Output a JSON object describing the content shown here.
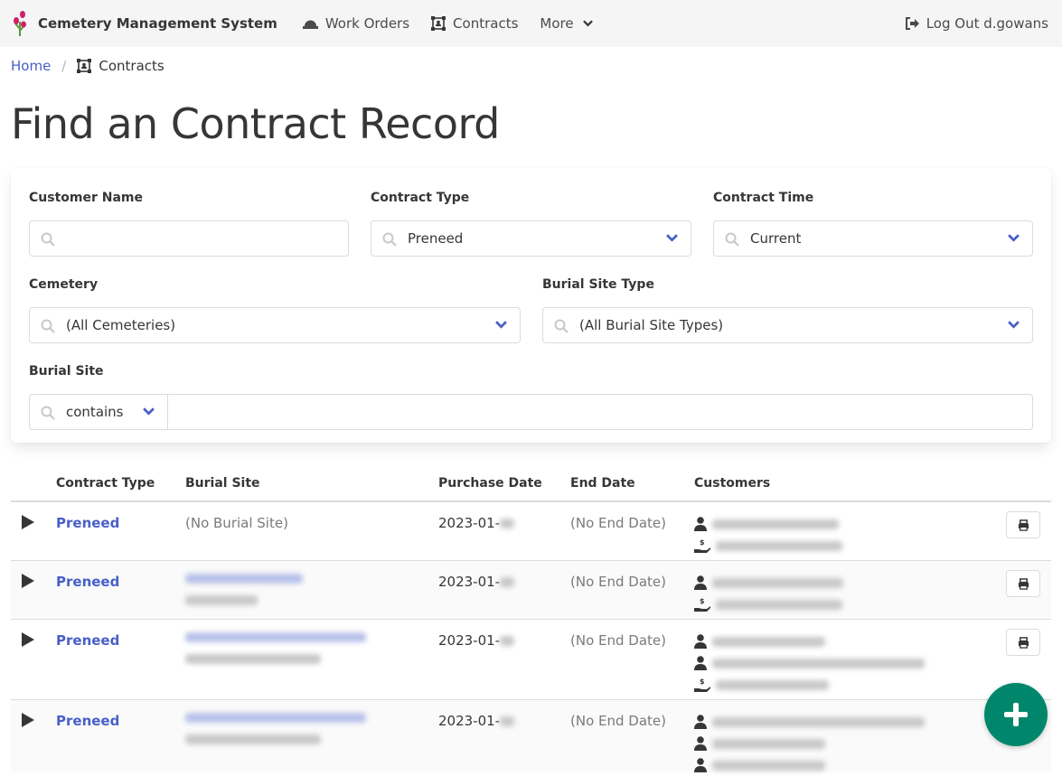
{
  "app": {
    "title": "Cemetery Management System"
  },
  "nav": {
    "items": [
      {
        "label": "Work Orders",
        "icon": "hard-hat-icon"
      },
      {
        "label": "Contracts",
        "icon": "contract-icon"
      },
      {
        "label": "More",
        "icon": "chevron-down-icon"
      }
    ],
    "logout": "Log Out d.gowans"
  },
  "breadcrumb": {
    "home": "Home",
    "current": "Contracts"
  },
  "page": {
    "title": "Find an Contract Record"
  },
  "filters": {
    "customer_name": {
      "label": "Customer Name",
      "value": ""
    },
    "contract_type": {
      "label": "Contract Type",
      "value": "Preneed"
    },
    "contract_time": {
      "label": "Contract Time",
      "value": "Current"
    },
    "cemetery": {
      "label": "Cemetery",
      "value": "(All Cemeteries)"
    },
    "burial_site_type": {
      "label": "Burial Site Type",
      "value": "(All Burial Site Types)"
    },
    "burial_site": {
      "label": "Burial Site",
      "operator": "contains",
      "value": ""
    }
  },
  "table": {
    "headers": {
      "contract_type": "Contract Type",
      "burial_site": "Burial Site",
      "purchase_date": "Purchase Date",
      "end_date": "End Date",
      "customers": "Customers"
    },
    "rows": [
      {
        "contract_type": "Preneed",
        "burial_site": "(No Burial Site)",
        "purchase_date": "2023-01-",
        "end_date": "(No End Date)"
      },
      {
        "contract_type": "Preneed",
        "burial_site": "",
        "purchase_date": "2023-01-",
        "end_date": "(No End Date)"
      },
      {
        "contract_type": "Preneed",
        "burial_site": "",
        "purchase_date": "2023-01-",
        "end_date": "(No End Date)"
      },
      {
        "contract_type": "Preneed",
        "burial_site": "",
        "purchase_date": "2023-01-",
        "end_date": "(No End Date)"
      }
    ]
  },
  "colors": {
    "link": "#485fc7",
    "fab": "#00876b",
    "navbar": "#f5f5f5"
  }
}
